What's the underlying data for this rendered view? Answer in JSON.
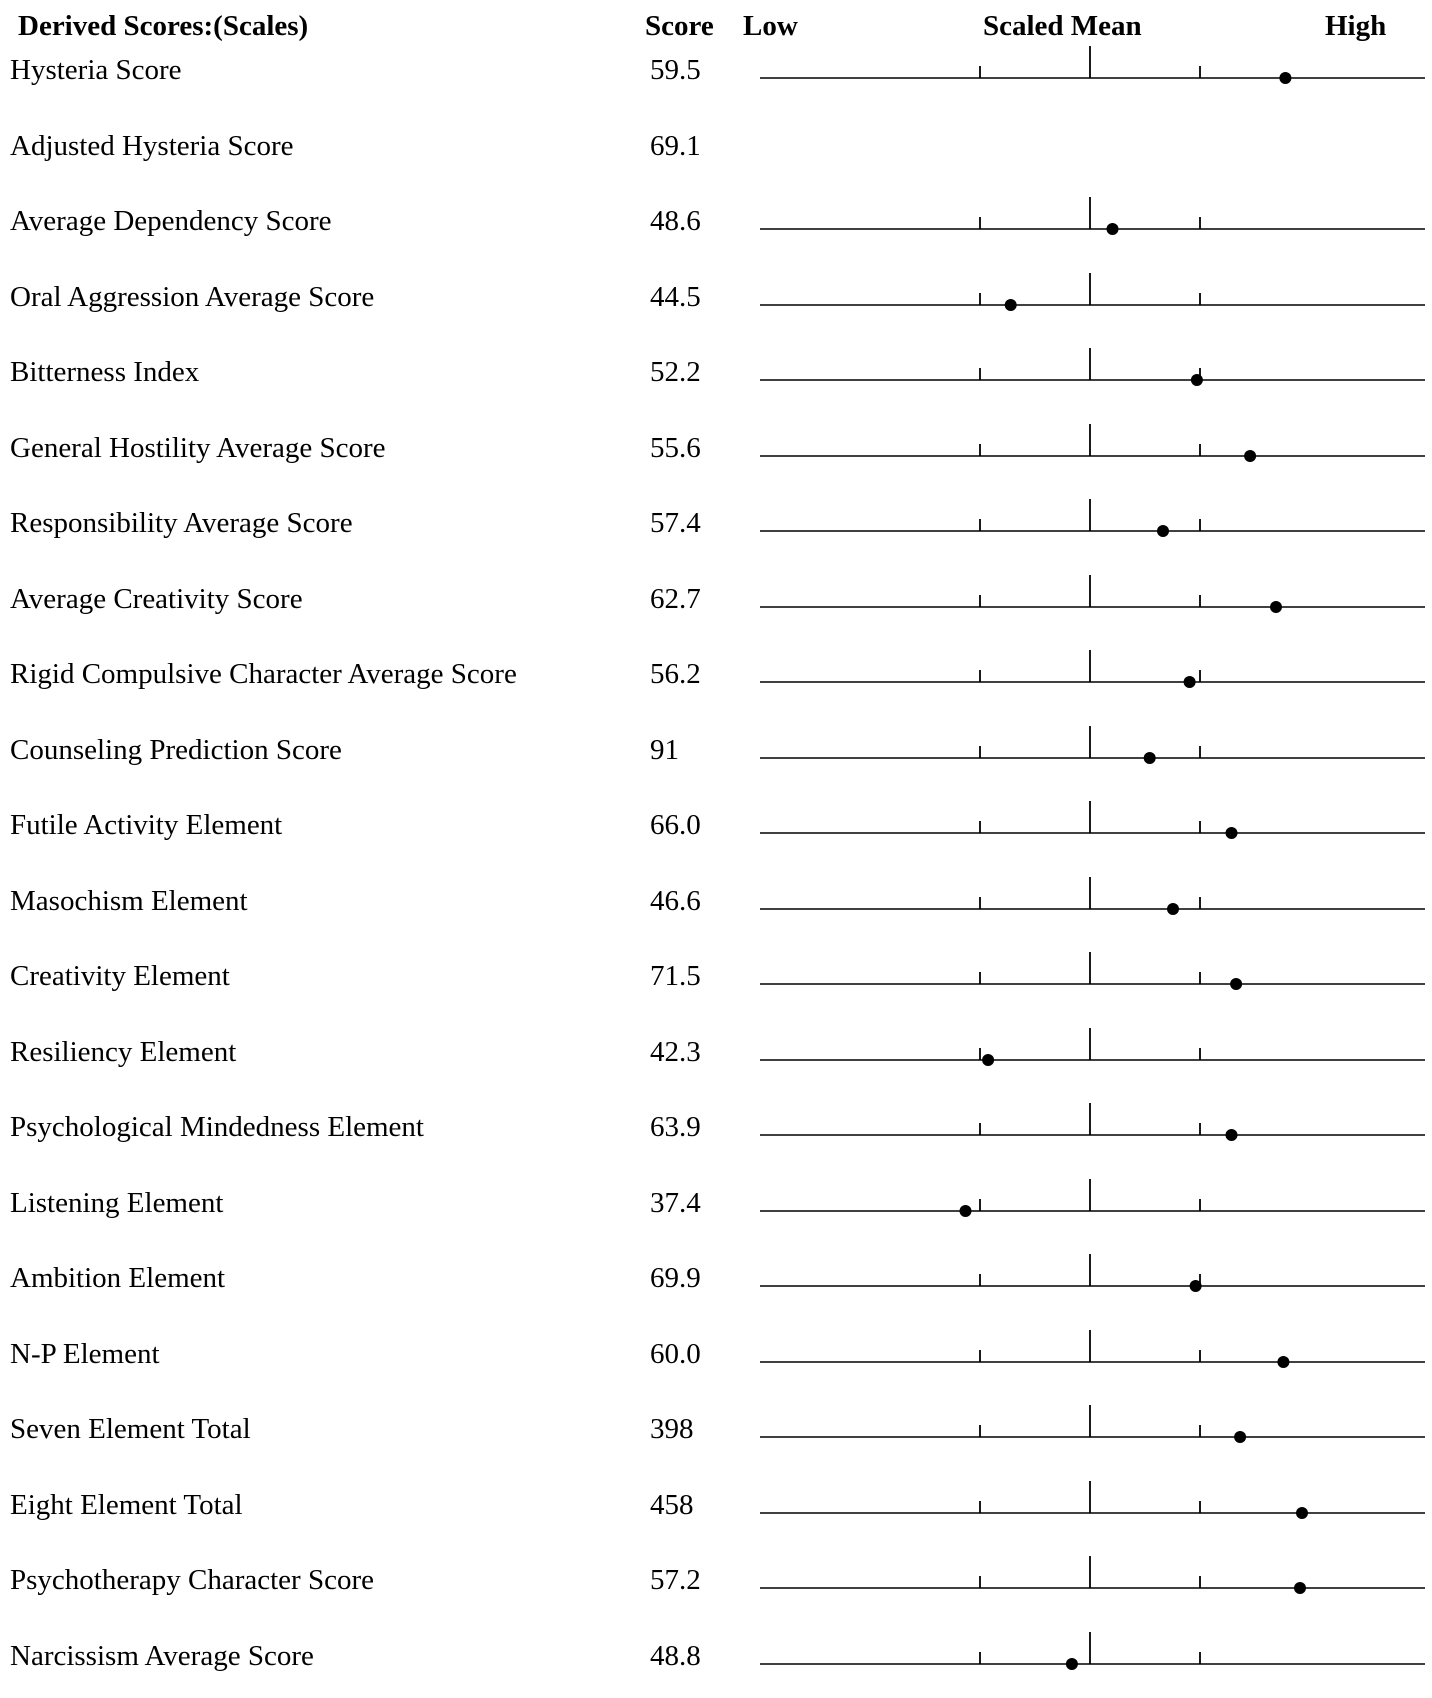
{
  "header": {
    "title": "Derived Scores:(Scales)",
    "score_col": "Score",
    "low": "Low",
    "scaled_mean": "Scaled Mean",
    "high": "High"
  },
  "rows": [
    {
      "label": "Hysteria Score",
      "score": "59.5",
      "plot": true,
      "marker": 0.79
    },
    {
      "label": "Adjusted Hysteria Score",
      "score": "69.1",
      "plot": false
    },
    {
      "label": "Average Dependency Score",
      "score": "48.6",
      "plot": true,
      "marker": 0.53
    },
    {
      "label": "Oral Aggression Average Score",
      "score": "44.5",
      "plot": true,
      "marker": 0.377
    },
    {
      "label": "Bitterness Index",
      "score": "52.2",
      "plot": true,
      "marker": 0.657
    },
    {
      "label": "General Hostility Average Score",
      "score": "55.6",
      "plot": true,
      "marker": 0.737
    },
    {
      "label": "Responsibility Average Score",
      "score": "57.4",
      "plot": true,
      "marker": 0.606
    },
    {
      "label": "Average Creativity Score",
      "score": "62.7",
      "plot": true,
      "marker": 0.776
    },
    {
      "label": "Rigid Compulsive Character Average Score",
      "score": "56.2",
      "plot": true,
      "marker": 0.646
    },
    {
      "label": "Counseling Prediction Score",
      "score": "91",
      "plot": true,
      "marker": 0.586
    },
    {
      "label": "Futile Activity Element",
      "score": "66.0",
      "plot": true,
      "marker": 0.709
    },
    {
      "label": "Masochism Element",
      "score": "46.6",
      "plot": true,
      "marker": 0.621
    },
    {
      "label": "Creativity Element",
      "score": "71.5",
      "plot": true,
      "marker": 0.716
    },
    {
      "label": "Resiliency Element",
      "score": "42.3",
      "plot": true,
      "marker": 0.343
    },
    {
      "label": "Psychological Mindedness Element",
      "score": "63.9",
      "plot": true,
      "marker": 0.709
    },
    {
      "label": "Listening Element",
      "score": "37.4",
      "plot": true,
      "marker": 0.309
    },
    {
      "label": "Ambition Element",
      "score": "69.9",
      "plot": true,
      "marker": 0.655
    },
    {
      "label": "N-P Element",
      "score": "60.0",
      "plot": true,
      "marker": 0.787
    },
    {
      "label": "Seven Element Total",
      "score": "398",
      "plot": true,
      "marker": 0.722
    },
    {
      "label": "Eight Element Total",
      "score": "458",
      "plot": true,
      "marker": 0.815
    },
    {
      "label": "Psychotherapy Character Score",
      "score": "57.2",
      "plot": true,
      "marker": 0.812
    },
    {
      "label": "Narcissism Average Score",
      "score": "48.8",
      "plot": true,
      "marker": 0.469
    }
  ]
}
